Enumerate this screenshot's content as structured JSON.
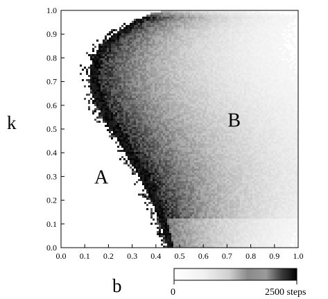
{
  "chart_data": {
    "type": "heatmap",
    "title": "",
    "xlabel": "b",
    "ylabel": "k",
    "xlim": [
      0.0,
      1.0
    ],
    "ylim": [
      0.0,
      1.0
    ],
    "x_ticks": [
      "0.0",
      "0.1",
      "0.2",
      "0.3",
      "0.4",
      "0.5",
      "0.6",
      "0.7",
      "0.8",
      "0.9",
      "1.0"
    ],
    "y_ticks": [
      "0.0",
      "0.1",
      "0.2",
      "0.3",
      "0.4",
      "0.5",
      "0.6",
      "0.7",
      "0.8",
      "0.9",
      "1.0"
    ],
    "grid": false,
    "region_labels": [
      {
        "text": "A",
        "x": 0.17,
        "k": 0.27
      },
      {
        "text": "B",
        "x": 0.73,
        "k": 0.51
      }
    ],
    "boundary": {
      "k": [
        0.0,
        0.1,
        0.2,
        0.3,
        0.4,
        0.5,
        0.55,
        0.6,
        0.65,
        0.7,
        0.75,
        0.8,
        0.85,
        0.9,
        0.95,
        1.0
      ],
      "b": [
        0.45,
        0.42,
        0.38,
        0.33,
        0.27,
        0.21,
        0.175,
        0.15,
        0.13,
        0.12,
        0.12,
        0.135,
        0.17,
        0.22,
        0.3,
        0.43
      ]
    },
    "colorbar": {
      "min_label": "0",
      "max_label": "2500 steps",
      "min": 0,
      "max": 2500,
      "colors": [
        "#ffffff",
        "#000000"
      ]
    }
  }
}
